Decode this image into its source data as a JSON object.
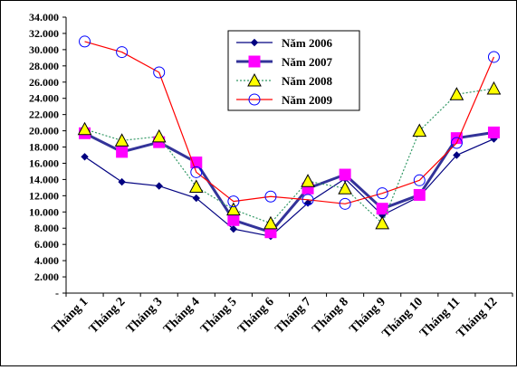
{
  "chart_data": {
    "type": "line",
    "title": "",
    "xlabel": "",
    "ylabel": "",
    "categories": [
      "Tháng 1",
      "Tháng 2",
      "Tháng 3",
      "Tháng 4",
      "Tháng 5",
      "Tháng 6",
      "Tháng 7",
      "Tháng 8",
      "Tháng 9",
      "Tháng 10",
      "Tháng 11",
      "Tháng 12"
    ],
    "ylim": [
      0,
      34000
    ],
    "yticks": [
      {
        "value": 0,
        "label": "-"
      },
      {
        "value": 2000,
        "label": "2.000"
      },
      {
        "value": 4000,
        "label": "4.000"
      },
      {
        "value": 6000,
        "label": "6.000"
      },
      {
        "value": 8000,
        "label": "8.000"
      },
      {
        "value": 10000,
        "label": "10.000"
      },
      {
        "value": 12000,
        "label": "12.000"
      },
      {
        "value": 14000,
        "label": "14.000"
      },
      {
        "value": 16000,
        "label": "16.000"
      },
      {
        "value": 18000,
        "label": "18.000"
      },
      {
        "value": 20000,
        "label": "20.000"
      },
      {
        "value": 22000,
        "label": "22.000"
      },
      {
        "value": 24000,
        "label": "24.000"
      },
      {
        "value": 26000,
        "label": "26.000"
      },
      {
        "value": 28000,
        "label": "28.000"
      },
      {
        "value": 30000,
        "label": "30.000"
      },
      {
        "value": 32000,
        "label": "32.000"
      },
      {
        "value": 34000,
        "label": "34.000"
      }
    ],
    "grid": false,
    "legend": "top-center",
    "series": [
      {
        "name": "Năm 2006",
        "color": "#000080",
        "marker": "diamond",
        "values": [
          16800,
          13700,
          13200,
          11700,
          7900,
          7000,
          11100,
          14100,
          9600,
          11900,
          17000,
          19000
        ]
      },
      {
        "name": "Năm 2007",
        "color": "#FF00FF",
        "line_color": "#333399",
        "marker": "square",
        "values": [
          19700,
          17400,
          18600,
          16100,
          9000,
          7500,
          12900,
          14600,
          10400,
          12100,
          19100,
          19800
        ]
      },
      {
        "name": "Năm 2008",
        "color": "#FFFF00",
        "line_color": "#339966",
        "marker": "triangle",
        "values": [
          20200,
          18800,
          19300,
          13100,
          10300,
          8600,
          13800,
          12900,
          8600,
          20000,
          24500,
          25200
        ]
      },
      {
        "name": "Năm 2009",
        "color": "#FF0000",
        "marker_color": "#0000FF",
        "marker": "circle",
        "values": [
          31000,
          29700,
          27200,
          14900,
          11300,
          11900,
          11500,
          11000,
          12300,
          13900,
          18500,
          29100
        ]
      }
    ]
  }
}
